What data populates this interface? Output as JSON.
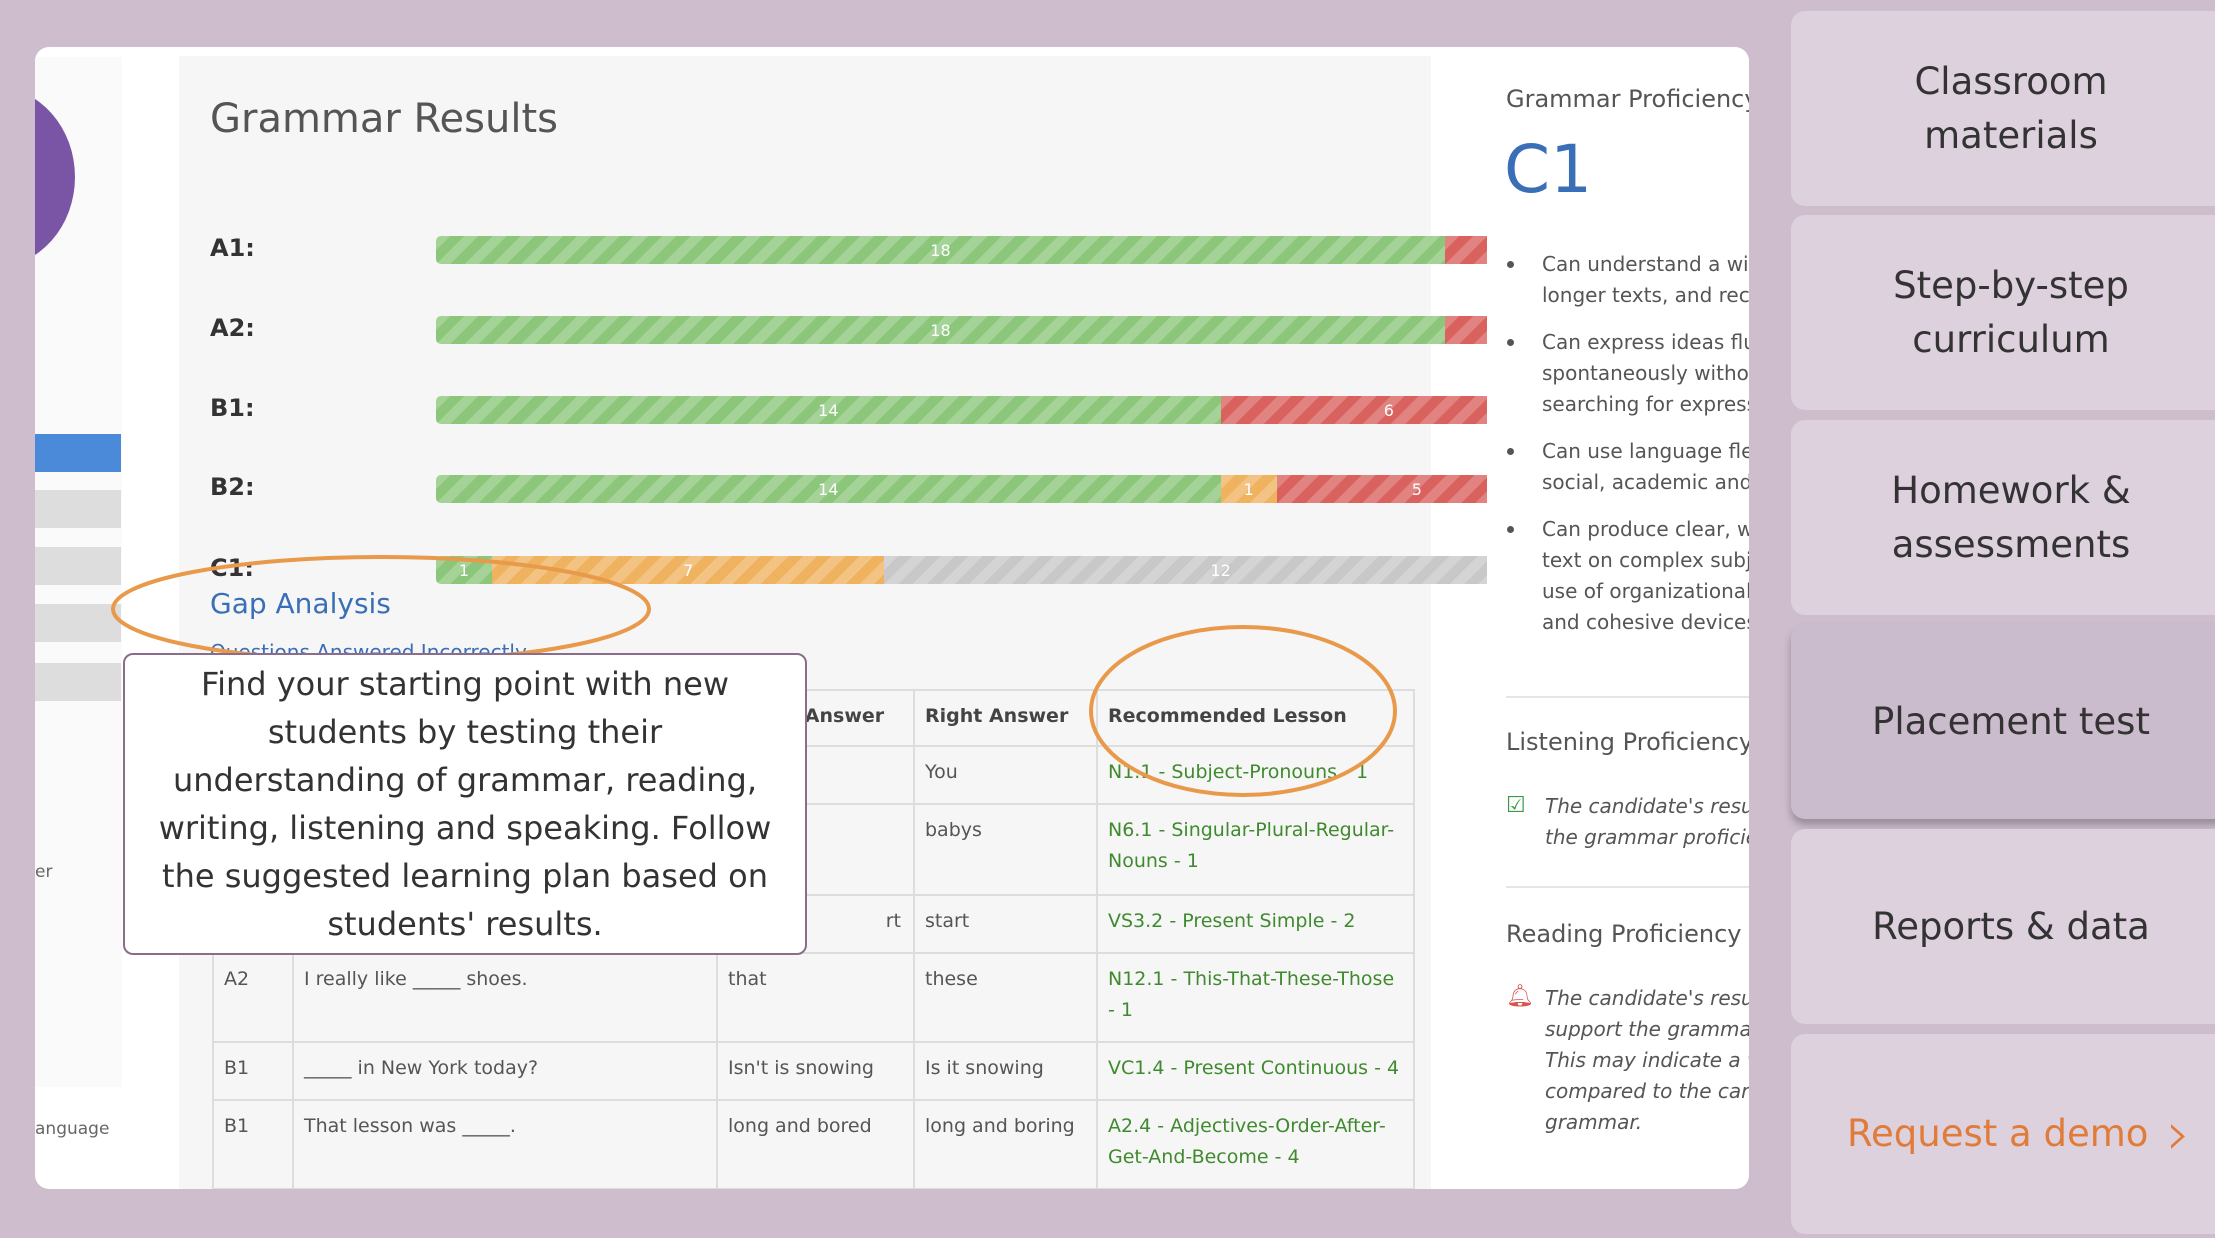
{
  "nav": {
    "items": [
      "Classroom materials",
      "Step-by-step curriculum",
      "Homework & assessments",
      "Placement test",
      "Reports & data"
    ],
    "active": 3,
    "cta": "Request a demo"
  },
  "sidebar": {
    "fragments": [
      "er",
      "anguage"
    ]
  },
  "grammar_results": {
    "title": "Grammar Results",
    "rows": [
      {
        "label": "A1:",
        "segments": [
          {
            "color": "#8cc67a",
            "value": 18
          },
          {
            "color": "#d9625e",
            "value": 2
          }
        ]
      },
      {
        "label": "A2:",
        "segments": [
          {
            "color": "#8cc67a",
            "value": 18
          },
          {
            "color": "#d9625e",
            "value": 2
          }
        ]
      },
      {
        "label": "B1:",
        "segments": [
          {
            "color": "#8cc67a",
            "value": 14
          },
          {
            "color": "#d9625e",
            "value": 6
          }
        ]
      },
      {
        "label": "B2:",
        "segments": [
          {
            "color": "#8cc67a",
            "value": 14
          },
          {
            "color": "#efb25f",
            "value": 1
          },
          {
            "color": "#d9625e",
            "value": 5
          }
        ]
      },
      {
        "label": "C1:",
        "segments": [
          {
            "color": "#8cc67a",
            "value": 1
          },
          {
            "color": "#efb25f",
            "value": 7
          },
          {
            "color": "#c8c8c8",
            "value": 12
          }
        ]
      }
    ]
  },
  "gap_analysis": {
    "title": "Gap Analysis",
    "subtitle": "Questions Answered Incorrectly"
  },
  "table": {
    "header": [
      null,
      null,
      "Wrong Answer",
      "Right Answer",
      "Recommended Lesson"
    ],
    "rows": [
      [
        null,
        null,
        null,
        "You",
        "N1.1 - Subject-Pronouns - 1"
      ],
      [
        null,
        null,
        null,
        "babys",
        "N6.1 - Singular-Plural-Regular-Nouns - 1"
      ],
      [
        null,
        null,
        "rt",
        "start",
        "VS3.2 - Present Simple - 2"
      ],
      [
        "A2",
        "I really like _____ shoes.",
        "that",
        "these",
        "N12.1 - This-That-These-Those - 1"
      ],
      [
        "B1",
        "_____ in New York today?",
        "Isn't is snowing",
        "Is it snowing",
        "VC1.4 - Present Continuous - 4"
      ],
      [
        "B1",
        "That lesson was _____.",
        "long and bored",
        "long and boring",
        "A2.4 - Adjectives-Order-After-Get-And-Become - 4"
      ]
    ]
  },
  "tooltip": "Find your starting point with new students by testing their understanding of grammar, reading, writing, listening and speaking. Follow the suggested learning plan based on students' results.",
  "proficiency": {
    "title": "Grammar Proficiency",
    "level": "C1",
    "bullets": [
      [
        "Can understand a wid",
        "longer texts, and reco"
      ],
      [
        "Can express ideas flue",
        "spontaneously withou",
        "searching for expressi"
      ],
      [
        "Can use language flex",
        "social, academic and p"
      ],
      [
        "Can produce clear, we",
        "text on complex subje",
        "use of organizational",
        "and cohesive devices."
      ]
    ],
    "listening": {
      "title": "Listening Proficiency",
      "lines": [
        "The candidate's results",
        "the grammar proficien"
      ]
    },
    "reading": {
      "title": "Reading Proficiency",
      "lines": [
        "The candidate's results",
        "support the grammar p",
        "This may indicate a wea",
        "compared to the candi",
        "grammar."
      ]
    }
  }
}
